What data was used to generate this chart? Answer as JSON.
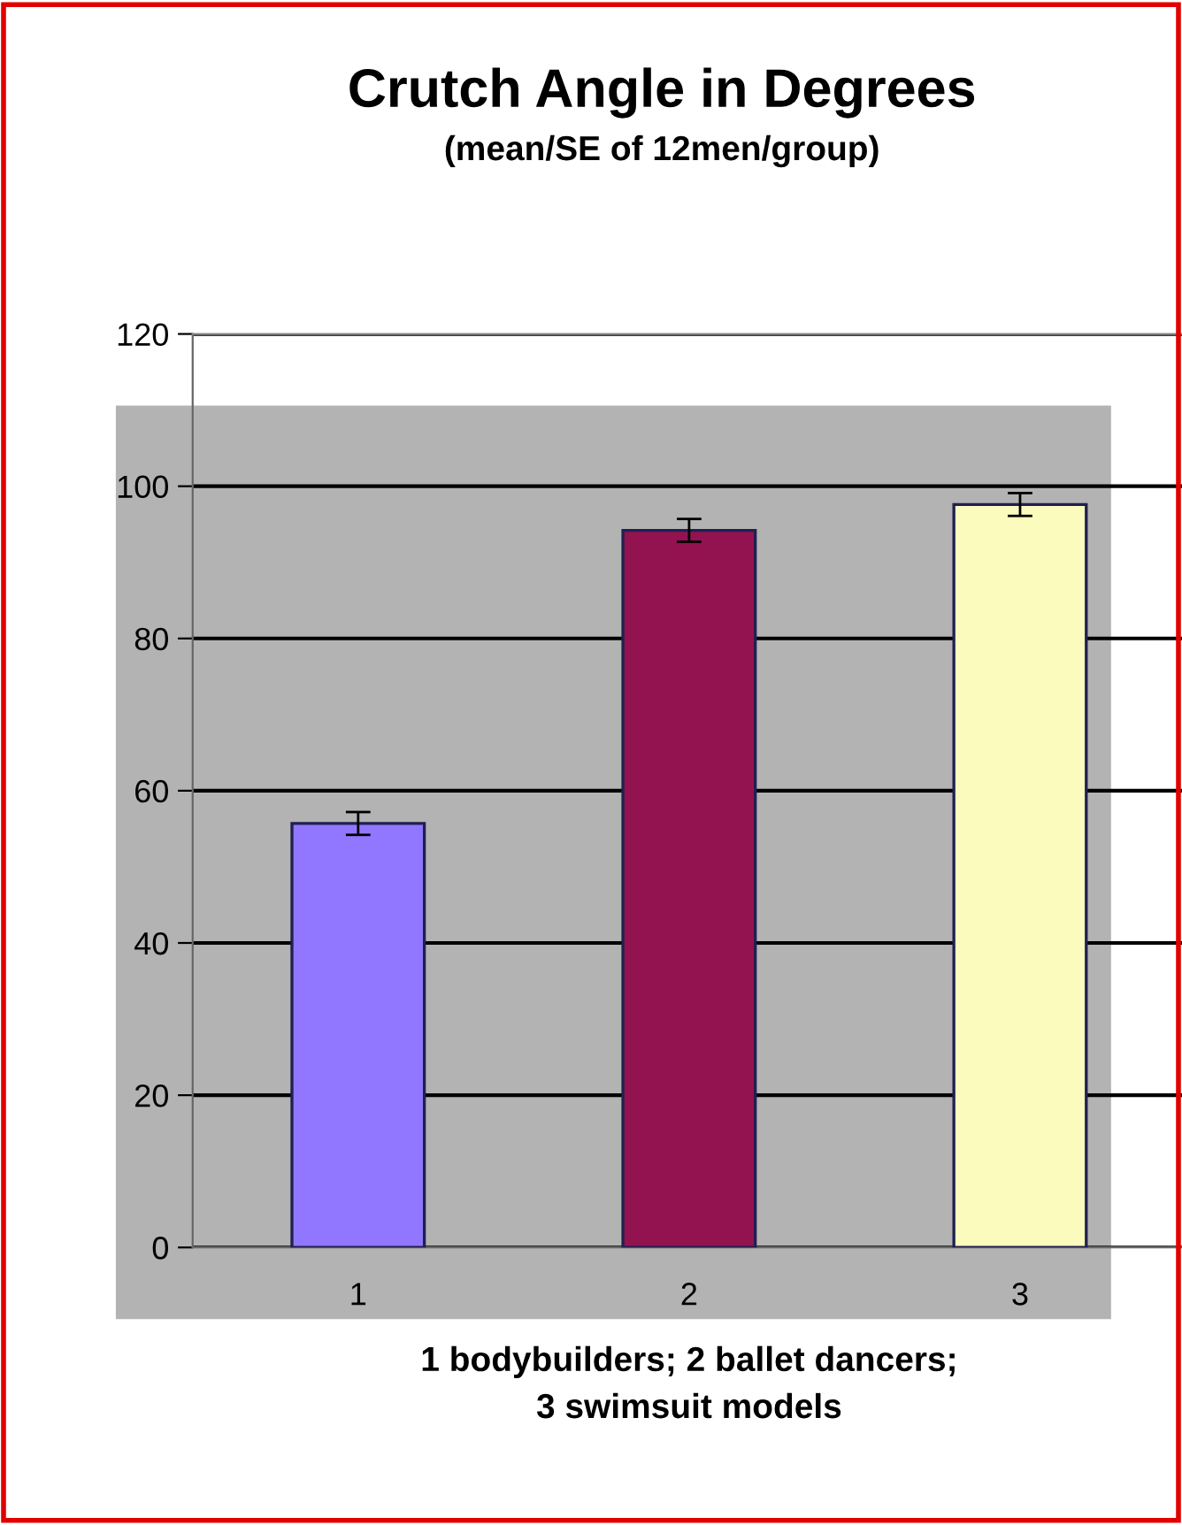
{
  "chart_data": {
    "type": "bar",
    "title": "Crutch Angle in Degrees",
    "subtitle": "(mean/SE of 12men/group)",
    "xlabel": "1 bodybuilders; 2 ballet dancers;\n3 swimsuit models",
    "categories": [
      "1",
      "2",
      "3"
    ],
    "values": [
      55.7,
      94.2,
      97.6
    ],
    "errors": [
      1.5,
      1.5,
      1.5
    ],
    "colors": [
      "#9177ff",
      "#931250",
      "#fbfbbd"
    ],
    "ylim": [
      0,
      120
    ],
    "yticks": [
      0,
      20,
      40,
      60,
      80,
      100,
      120
    ],
    "grid": "y"
  }
}
